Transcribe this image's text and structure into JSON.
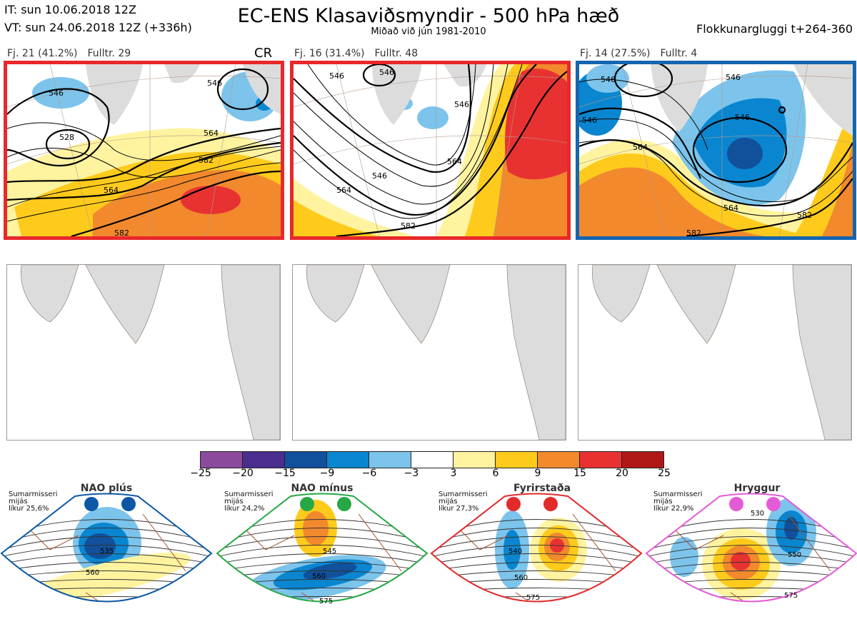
{
  "header": {
    "init_time": "IT: sun 10.06.2018 12Z",
    "valid_time": "VT: sun 24.06.2018 12Z  (+336h)",
    "title": "EC-ENS Klasaviðsmyndir - 500 hPa hæð",
    "subtitle": "Miðað við jún 1981-2010",
    "window": "Flokkunargluggi t+264-360"
  },
  "clusters": [
    {
      "label": "Fj. 21 (41.2%)",
      "rep": "Fulltr. 29",
      "badge": "CR",
      "frame_color": "#e8282b",
      "contour_labels": [
        "546",
        "528",
        "564",
        "582",
        "564",
        "546",
        "582"
      ]
    },
    {
      "label": "Fj. 16 (31.4%)",
      "rep": "Fulltr. 48",
      "badge": "",
      "frame_color": "#e8282b",
      "contour_labels": [
        "546",
        "546",
        "546",
        "546",
        "564",
        "564",
        "582"
      ]
    },
    {
      "label": "Fj. 14 (27.5%)",
      "rep": "Fulltr. 4",
      "badge": "",
      "frame_color": "#1565b0",
      "contour_labels": [
        "546",
        "546",
        "546",
        "546",
        "564",
        "564",
        "582",
        "582"
      ]
    }
  ],
  "colorbar": {
    "colors": [
      "#8b4a9c",
      "#4a2d8f",
      "#11509a",
      "#0a86d0",
      "#7cc4ec",
      "#ffffff",
      "#fff3a0",
      "#fecb1c",
      "#f2892d",
      "#e83232",
      "#b01818"
    ],
    "ticks": [
      "−25",
      "−20",
      "−15",
      "−9",
      "−6",
      "−3",
      "3",
      "6",
      "9",
      "15",
      "20",
      "25"
    ]
  },
  "regimes": [
    {
      "name": "NAO plús",
      "info": [
        "Sumarmisseri",
        "mijás",
        "líkur 25,6%"
      ],
      "color": "#0d58a6",
      "contour_labels": [
        "535",
        "560"
      ]
    },
    {
      "name": "NAO mínus",
      "info": [
        "Sumarmisseri",
        "mijás",
        "líkur 24,2%"
      ],
      "color": "#27a844",
      "contour_labels": [
        "545",
        "560",
        "575"
      ]
    },
    {
      "name": "Fyrirstaða",
      "info": [
        "Sumarmisseri",
        "mijás",
        "líkur 27,3%"
      ],
      "color": "#e32a2a",
      "contour_labels": [
        "540",
        "560",
        "575"
      ]
    },
    {
      "name": "Hryggur",
      "info": [
        "Sumarmisseri",
        "mijás",
        "líkur 22,9%"
      ],
      "color": "#e35bd6",
      "contour_labels": [
        "530",
        "550",
        "575"
      ]
    }
  ]
}
